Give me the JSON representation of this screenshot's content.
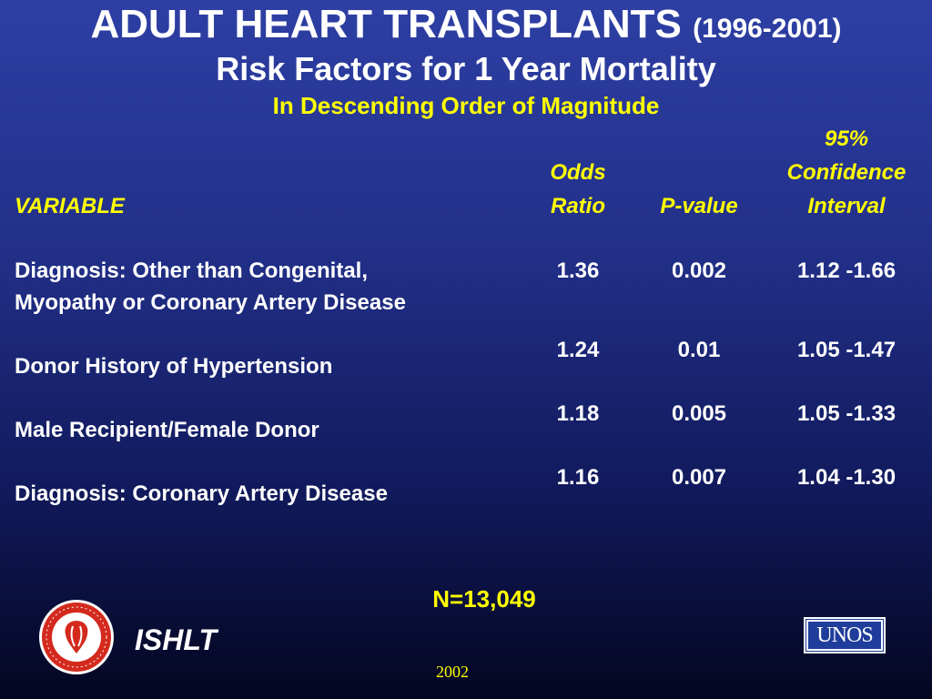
{
  "title": {
    "main": "ADULT HEART TRANSPLANTS",
    "years": "(1996-2001)",
    "subtitle": "Risk Factors for 1 Year Mortality",
    "subtitle2": "In Descending Order of Magnitude"
  },
  "table": {
    "headers": {
      "variable": "VARIABLE",
      "odds_line1": "Odds",
      "odds_line2": "Ratio",
      "pvalue": "P-value",
      "ci_line1": "95%",
      "ci_line2": "Confidence",
      "ci_line3": "Interval"
    },
    "rows": [
      {
        "label_line1": "Diagnosis: Other than Congenital,",
        "label_line2": "Myopathy or Coronary Artery Disease",
        "odds": "1.36",
        "p": "0.002",
        "ci": "1.12 -1.66"
      },
      {
        "label": "Donor History of Hypertension",
        "odds": "1.24",
        "p": "0.01",
        "ci": "1.05 -1.47"
      },
      {
        "label": "Male Recipient/Female Donor",
        "odds": "1.18",
        "p": "0.005",
        "ci": "1.05 -1.33"
      },
      {
        "label": "Diagnosis: Coronary Artery Disease",
        "odds": "1.16",
        "p": "0.007",
        "ci": "1.04 -1.30"
      }
    ]
  },
  "footer": {
    "n": "N=13,049",
    "org": "ISHLT",
    "year": "2002",
    "unos_logo_text": "UNOS",
    "ishlt_logo": "ishlt-society-seal-icon"
  },
  "colors": {
    "background_top": "#2e3fa4",
    "background_bottom": "#040620",
    "accent_yellow": "#ffff00",
    "text": "#ffffff"
  }
}
